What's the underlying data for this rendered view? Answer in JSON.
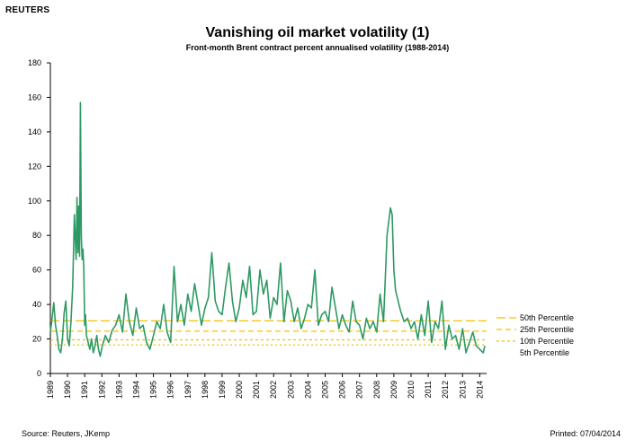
{
  "brand": "REUTERS",
  "footer": {
    "source": "Source: Reuters, JKemp",
    "printed": "Printed: 07/04/2014"
  },
  "colors": {
    "series": "#2e9a63",
    "percentile": "#f2c100"
  },
  "chart_data": {
    "type": "line",
    "title": "Vanishing oil market volatility (1)",
    "subtitle": "Front-month Brent contract percent annualised volatility (1988-2014)",
    "xlabel": "",
    "ylabel": "",
    "xlim": [
      1989,
      2014.4
    ],
    "ylim": [
      0,
      180
    ],
    "yticks": [
      0,
      20,
      40,
      60,
      80,
      100,
      120,
      140,
      160,
      180
    ],
    "xticks": [
      "1989",
      "1990",
      "1991",
      "1992",
      "1993",
      "1994",
      "1995",
      "1996",
      "1997",
      "1998",
      "1999",
      "2000",
      "2001",
      "2002",
      "2003",
      "2004",
      "2005",
      "2006",
      "2007",
      "2008",
      "2009",
      "2010",
      "2011",
      "2012",
      "2013",
      "2014"
    ],
    "grid": false,
    "legend_position": "right",
    "series": [
      {
        "name": "",
        "x": [
          1989.0,
          1989.1,
          1989.2,
          1989.3,
          1989.4,
          1989.5,
          1989.6,
          1989.7,
          1989.8,
          1989.9,
          1990.0,
          1990.1,
          1990.2,
          1990.3,
          1990.4,
          1990.5,
          1990.55,
          1990.6,
          1990.65,
          1990.7,
          1990.75,
          1990.8,
          1990.85,
          1990.9,
          1990.95,
          1991.0,
          1991.05,
          1991.1,
          1991.2,
          1991.3,
          1991.4,
          1991.5,
          1991.6,
          1991.7,
          1991.8,
          1991.9,
          1992.0,
          1992.2,
          1992.4,
          1992.6,
          1992.8,
          1993.0,
          1993.2,
          1993.4,
          1993.6,
          1993.8,
          1994.0,
          1994.2,
          1994.4,
          1994.6,
          1994.8,
          1995.0,
          1995.2,
          1995.4,
          1995.6,
          1995.8,
          1996.0,
          1996.2,
          1996.4,
          1996.6,
          1996.8,
          1997.0,
          1997.2,
          1997.4,
          1997.6,
          1997.8,
          1998.0,
          1998.2,
          1998.4,
          1998.6,
          1998.8,
          1999.0,
          1999.2,
          1999.4,
          1999.6,
          1999.8,
          2000.0,
          2000.2,
          2000.4,
          2000.6,
          2000.8,
          2001.0,
          2001.2,
          2001.4,
          2001.6,
          2001.8,
          2002.0,
          2002.2,
          2002.4,
          2002.6,
          2002.8,
          2003.0,
          2003.2,
          2003.4,
          2003.6,
          2003.8,
          2004.0,
          2004.2,
          2004.4,
          2004.6,
          2004.8,
          2005.0,
          2005.2,
          2005.4,
          2005.6,
          2005.8,
          2006.0,
          2006.2,
          2006.4,
          2006.6,
          2006.8,
          2007.0,
          2007.2,
          2007.4,
          2007.6,
          2007.8,
          2008.0,
          2008.2,
          2008.4,
          2008.6,
          2008.8,
          2008.9,
          2009.0,
          2009.1,
          2009.2,
          2009.4,
          2009.6,
          2009.8,
          2010.0,
          2010.2,
          2010.4,
          2010.6,
          2010.8,
          2011.0,
          2011.2,
          2011.4,
          2011.6,
          2011.8,
          2012.0,
          2012.2,
          2012.4,
          2012.6,
          2012.8,
          2013.0,
          2013.2,
          2013.4,
          2013.6,
          2013.8,
          2014.0,
          2014.2,
          2014.3
        ],
        "values": [
          24,
          32,
          41,
          28,
          22,
          14,
          12,
          20,
          35,
          42,
          20,
          16,
          30,
          50,
          92,
          66,
          102,
          70,
          97,
          68,
          157,
          80,
          66,
          72,
          60,
          28,
          34,
          22,
          18,
          14,
          20,
          12,
          16,
          22,
          14,
          10,
          15,
          22,
          18,
          25,
          28,
          34,
          24,
          46,
          30,
          22,
          38,
          26,
          28,
          18,
          14,
          22,
          30,
          26,
          40,
          24,
          18,
          62,
          30,
          40,
          28,
          46,
          36,
          52,
          40,
          28,
          38,
          44,
          70,
          42,
          36,
          34,
          50,
          64,
          42,
          30,
          38,
          54,
          44,
          62,
          34,
          36,
          60,
          46,
          54,
          32,
          44,
          40,
          64,
          30,
          48,
          42,
          30,
          38,
          26,
          32,
          40,
          38,
          60,
          28,
          34,
          36,
          30,
          50,
          38,
          26,
          34,
          28,
          24,
          42,
          30,
          28,
          20,
          32,
          26,
          30,
          24,
          46,
          30,
          80,
          96,
          92,
          60,
          48,
          44,
          36,
          30,
          32,
          26,
          30,
          20,
          34,
          22,
          42,
          18,
          30,
          26,
          42,
          14,
          28,
          20,
          22,
          14,
          26,
          12,
          18,
          24,
          16,
          14,
          12,
          16
        ]
      }
    ],
    "percentiles": [
      {
        "name": "50th Percentile",
        "value": 30.5
      },
      {
        "name": "25th Percentile",
        "value": 24.5
      },
      {
        "name": "10th Percentile",
        "value": 19.5
      },
      {
        "name": "5th Percentile",
        "value": 16.5
      }
    ]
  }
}
